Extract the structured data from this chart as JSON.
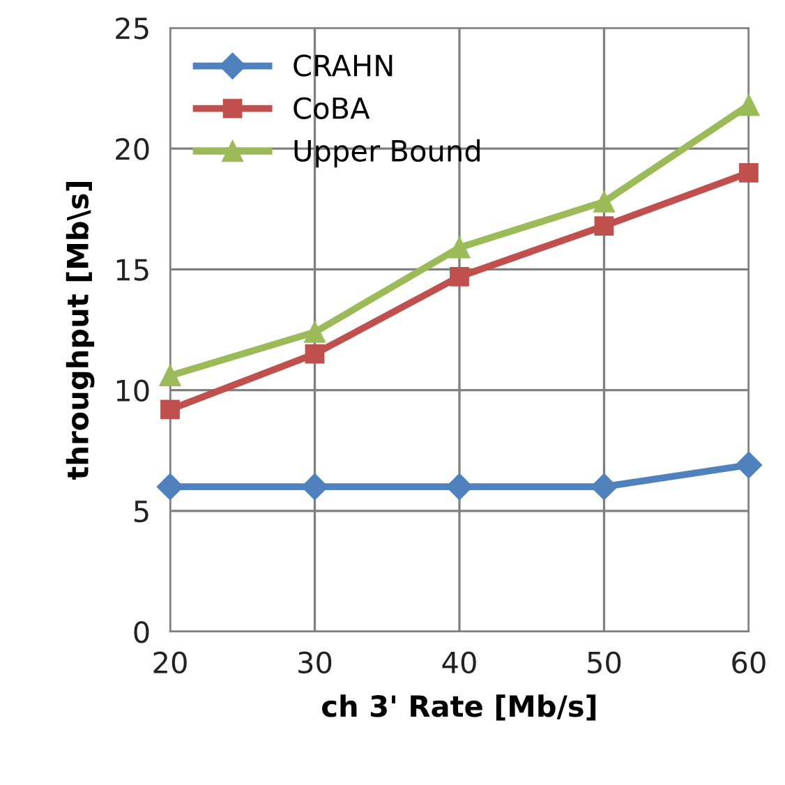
{
  "chart_data": {
    "type": "line",
    "xlabel": "ch 3' Rate [Mb/s]",
    "ylabel": "throughput [Mb\\s]",
    "x": [
      20,
      30,
      40,
      50,
      60
    ],
    "series": [
      {
        "name": "CRAHN",
        "color": "#4f81bd",
        "marker": "diamond",
        "values": [
          6,
          6,
          6,
          6,
          6.9
        ]
      },
      {
        "name": "CoBA",
        "color": "#c0504d",
        "marker": "square",
        "values": [
          9.2,
          11.5,
          14.7,
          16.8,
          19.0
        ]
      },
      {
        "name": "Upper Bound",
        "color": "#9bbb59",
        "marker": "triangle",
        "values": [
          10.6,
          12.4,
          15.9,
          17.8,
          21.8
        ]
      }
    ],
    "xlim": [
      20,
      60
    ],
    "xticks": [
      20,
      30,
      40,
      50,
      60
    ],
    "ylim": [
      0,
      25
    ],
    "yticks": [
      0,
      5,
      10,
      15,
      20,
      25
    ],
    "grid": true,
    "legend": "top left",
    "line_style": "solid"
  }
}
